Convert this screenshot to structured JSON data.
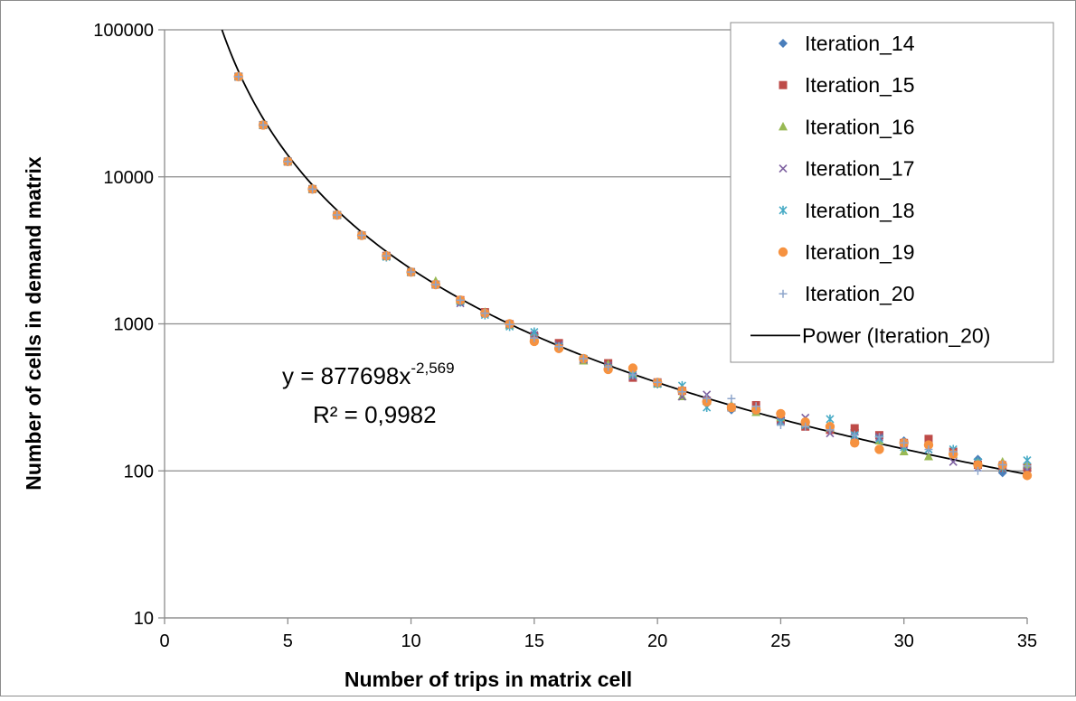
{
  "chart_data": {
    "type": "scatter",
    "xlabel": "Number of trips in matrix cell",
    "ylabel": "Number of cells in demand matrix",
    "xlim": [
      0,
      35
    ],
    "ylim": [
      10,
      100000
    ],
    "yscale": "log",
    "x_ticks": [
      "0",
      "5",
      "10",
      "15",
      "20",
      "25",
      "30",
      "35"
    ],
    "y_ticks": [
      "10",
      "100",
      "1000",
      "10000",
      "100000"
    ],
    "grid": "horizontal",
    "legend_position": "top-right",
    "x": [
      3,
      4,
      5,
      6,
      7,
      8,
      9,
      10,
      11,
      12,
      13,
      14,
      15,
      16,
      17,
      18,
      19,
      20,
      21,
      22,
      23,
      24,
      25,
      26,
      27,
      28,
      29,
      30,
      31,
      32,
      33,
      34,
      35
    ],
    "series": [
      {
        "name": "Iteration_14",
        "marker": "diamond",
        "color": "#4a7ebb",
        "values": [
          48000,
          22500,
          12700,
          8250,
          5500,
          4000,
          2900,
          2250,
          1850,
          1400,
          1180,
          1000,
          850,
          720,
          580,
          520,
          450,
          400,
          350,
          300,
          260,
          270,
          230,
          210,
          200,
          190,
          170,
          160,
          150,
          130,
          120,
          97,
          100
        ]
      },
      {
        "name": "Iteration_15",
        "marker": "square",
        "color": "#be4b48",
        "values": [
          48000,
          22500,
          12700,
          8250,
          5500,
          4000,
          2900,
          2250,
          1850,
          1450,
          1200,
          990,
          820,
          740,
          570,
          540,
          430,
          400,
          350,
          300,
          270,
          280,
          220,
          200,
          190,
          195,
          175,
          155,
          165,
          135,
          110,
          105,
          105
        ]
      },
      {
        "name": "Iteration_16",
        "marker": "triangle",
        "color": "#98b954",
        "values": [
          48000,
          22500,
          12700,
          8250,
          5500,
          4000,
          2900,
          2250,
          1950,
          1450,
          1200,
          980,
          830,
          700,
          560,
          530,
          460,
          390,
          320,
          300,
          280,
          250,
          230,
          210,
          195,
          170,
          160,
          135,
          125,
          130,
          115,
          115,
          110
        ]
      },
      {
        "name": "Iteration_17",
        "marker": "x",
        "color": "#7d60a0",
        "values": [
          48000,
          22500,
          12700,
          8250,
          5500,
          4000,
          2900,
          2250,
          1850,
          1380,
          1180,
          1000,
          840,
          720,
          570,
          520,
          440,
          400,
          320,
          330,
          270,
          260,
          220,
          230,
          180,
          170,
          170,
          150,
          140,
          115,
          105,
          110,
          100
        ]
      },
      {
        "name": "Iteration_18",
        "marker": "asterisk",
        "color": "#46aac5",
        "values": [
          48000,
          22500,
          12700,
          8250,
          5500,
          4000,
          2850,
          2250,
          1850,
          1420,
          1150,
          960,
          880,
          700,
          580,
          500,
          450,
          390,
          380,
          270,
          270,
          260,
          215,
          205,
          225,
          175,
          165,
          145,
          140,
          140,
          115,
          105,
          118
        ]
      },
      {
        "name": "Iteration_19",
        "marker": "circle",
        "color": "#f69240",
        "values": [
          48000,
          22500,
          12700,
          8250,
          5500,
          4000,
          2900,
          2250,
          1850,
          1450,
          1180,
          1000,
          760,
          680,
          580,
          490,
          500,
          400,
          350,
          295,
          270,
          260,
          245,
          215,
          200,
          155,
          140,
          155,
          150,
          130,
          110,
          110,
          93
        ]
      },
      {
        "name": "Iteration_20",
        "marker": "plus",
        "color": "#8ea5cb",
        "values": [
          48000,
          22500,
          12700,
          8250,
          5500,
          4000,
          2900,
          2250,
          1850,
          1450,
          1180,
          990,
          800,
          700,
          580,
          510,
          450,
          400,
          345,
          310,
          310,
          275,
          205,
          200,
          190,
          175,
          170,
          155,
          140,
          135,
          100,
          110,
          108
        ]
      }
    ],
    "trendline": {
      "name": "Power (Iteration_20)",
      "coefficient": 877698,
      "exponent": -2.569,
      "color": "#000000"
    },
    "annotation": {
      "equation_prefix": "y = 877698x",
      "equation_exponent": "-2,569",
      "r_squared": "R² = 0,9982"
    }
  }
}
